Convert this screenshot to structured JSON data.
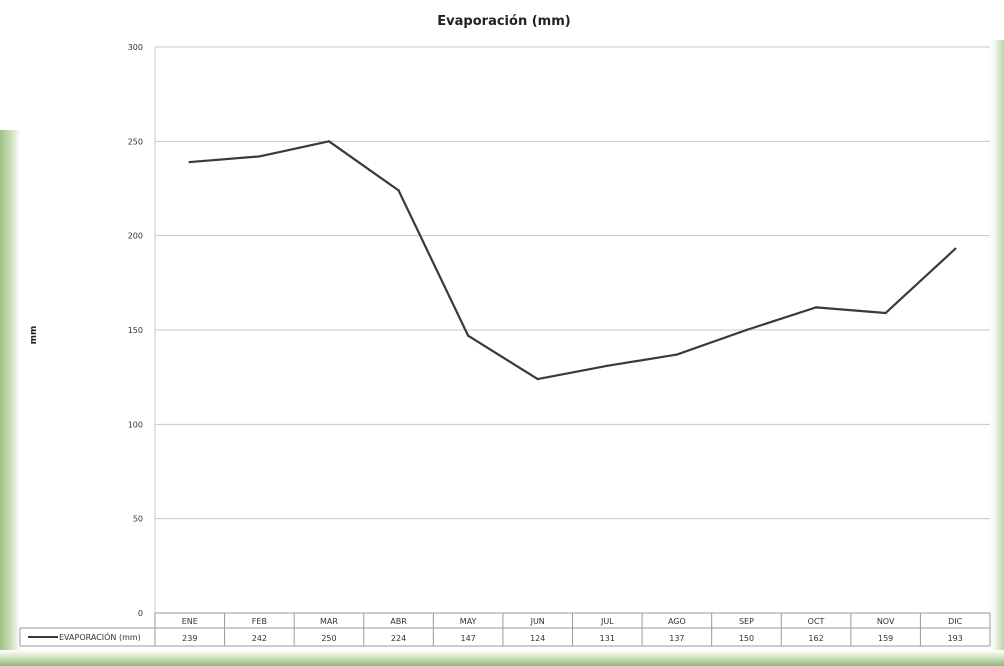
{
  "chart_data": {
    "type": "line",
    "title": "Evaporación (mm)",
    "xlabel": "",
    "ylabel": "mm",
    "ylim": [
      0,
      300
    ],
    "yticks": [
      0,
      50,
      100,
      150,
      200,
      250,
      300
    ],
    "categories": [
      "ENE",
      "FEB",
      "MAR",
      "ABR",
      "MAY",
      "JUN",
      "JUL",
      "AGO",
      "SEP",
      "OCT",
      "NOV",
      "DIC"
    ],
    "series": [
      {
        "name": "EVAPORACIÓN (mm)",
        "values": [
          239,
          242,
          250,
          224,
          147,
          124,
          131,
          137,
          150,
          162,
          159,
          193
        ],
        "color": "#3a3a3a"
      }
    ],
    "grid": true,
    "data_table": true
  }
}
